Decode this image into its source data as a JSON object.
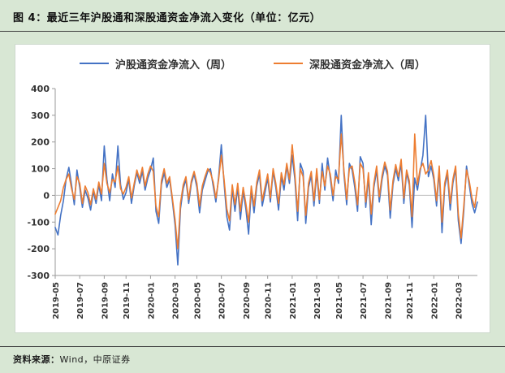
{
  "header": {
    "title": "图 4：最近三年沪股通和深股通资金净流入变化（单位：亿元）"
  },
  "footer": {
    "source_label": "资料来源：",
    "source_value": "Wind，中原证券"
  },
  "colors": {
    "background": "#d8e7d4",
    "panel": "#ffffff",
    "shanghai_line": "#4472C4",
    "shenzhen_line": "#ED7D31",
    "zero_line": "#c0c0c0",
    "axis": "#9a9a9a",
    "tick_text": "#333333"
  },
  "chart_data": {
    "type": "line",
    "title": "最近三年沪股通和深股通资金净流入变化",
    "unit": "亿元",
    "xlabel": "",
    "ylabel": "",
    "ylim": [
      -300,
      400
    ],
    "y_ticks": [
      400,
      300,
      200,
      100,
      0,
      -100,
      -200,
      -300
    ],
    "grid": false,
    "legend_position": "top",
    "x_tick_labels": [
      "2019-05",
      "2019-07",
      "2019-09",
      "2019-11",
      "2020-01",
      "2020-03",
      "2020-05",
      "2020-07",
      "2020-09",
      "2020-11",
      "2021-01",
      "2021-03",
      "2021-05",
      "2021-07",
      "2021-09",
      "2021-11",
      "2022-01",
      "2022-03"
    ],
    "x_tick_week_indices": [
      0,
      9,
      18,
      26,
      35,
      44,
      52,
      61,
      70,
      78,
      87,
      96,
      104,
      113,
      122,
      130,
      139,
      148
    ],
    "series": [
      {
        "name": "沪股通资金净流入（周）",
        "color": "#4472C4",
        "values": [
          -120,
          -148,
          -75,
          -20,
          60,
          105,
          40,
          -35,
          95,
          30,
          -45,
          20,
          -10,
          -55,
          15,
          -30,
          40,
          -20,
          185,
          60,
          -20,
          80,
          30,
          185,
          40,
          -15,
          10,
          60,
          -30,
          35,
          85,
          45,
          90,
          20,
          65,
          95,
          140,
          -60,
          -105,
          40,
          85,
          30,
          60,
          -20,
          -110,
          -260,
          -50,
          25,
          60,
          -30,
          45,
          80,
          30,
          -65,
          20,
          55,
          90,
          100,
          35,
          -25,
          70,
          190,
          45,
          -80,
          -130,
          25,
          -60,
          30,
          -90,
          15,
          -50,
          -145,
          20,
          -65,
          35,
          80,
          -40,
          10,
          65,
          -25,
          90,
          30,
          -55,
          70,
          20,
          110,
          45,
          150,
          60,
          -95,
          120,
          90,
          -105,
          30,
          75,
          -40,
          85,
          -30,
          120,
          20,
          140,
          65,
          -20,
          95,
          45,
          300,
          80,
          -35,
          120,
          95,
          30,
          -60,
          145,
          120,
          -45,
          70,
          -110,
          30,
          95,
          -25,
          60,
          110,
          75,
          -85,
          40,
          100,
          55,
          120,
          -30,
          85,
          40,
          -120,
          65,
          20,
          90,
          150,
          300,
          70,
          110,
          60,
          -40,
          95,
          -140,
          30,
          80,
          -55,
          45,
          100,
          -95,
          -180,
          -60,
          110,
          40,
          -30,
          -65,
          -25
        ]
      },
      {
        "name": "深股通资金净流入（周）",
        "color": "#ED7D31",
        "values": [
          -70,
          -45,
          -20,
          30,
          60,
          80,
          25,
          -15,
          70,
          45,
          -30,
          35,
          10,
          -35,
          25,
          -15,
          50,
          5,
          120,
          45,
          10,
          60,
          50,
          110,
          25,
          5,
          30,
          70,
          -10,
          45,
          95,
          60,
          105,
          35,
          80,
          110,
          90,
          -40,
          -80,
          55,
          100,
          45,
          70,
          -10,
          -90,
          -200,
          -30,
          40,
          70,
          -15,
          55,
          90,
          45,
          -40,
          35,
          70,
          100,
          85,
          50,
          -10,
          60,
          150,
          60,
          -50,
          -95,
          40,
          -35,
          45,
          -60,
          30,
          -30,
          -100,
          35,
          -40,
          50,
          95,
          -20,
          30,
          80,
          -10,
          100,
          45,
          -30,
          85,
          40,
          120,
          60,
          190,
          80,
          -60,
          100,
          70,
          -75,
          45,
          90,
          -20,
          100,
          -15,
          90,
          35,
          110,
          80,
          0,
          70,
          60,
          230,
          95,
          -15,
          100,
          110,
          50,
          -35,
          120,
          100,
          -25,
          85,
          -70,
          45,
          110,
          -5,
          75,
          125,
          90,
          -55,
          55,
          115,
          70,
          135,
          -10,
          95,
          55,
          -80,
          230,
          40,
          100,
          120,
          80,
          95,
          130,
          75,
          -20,
          110,
          -100,
          45,
          95,
          -30,
          60,
          110,
          -70,
          -160,
          -40,
          95,
          55,
          -10,
          -45,
          30
        ]
      }
    ]
  }
}
